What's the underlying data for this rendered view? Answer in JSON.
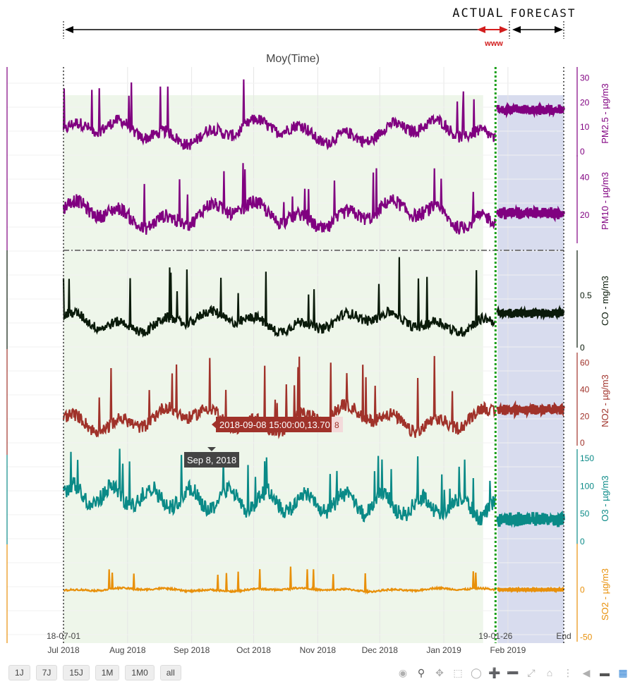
{
  "chart_data": {
    "type": "line",
    "title": "Moy(Time)",
    "x_start": "2018-07-01",
    "x_end": "2019-02-28",
    "x_ticks": [
      "Jul 2018",
      "Aug 2018",
      "Sep 2018",
      "Oct 2018",
      "Nov 2018",
      "Dec 2018",
      "Jan 2019",
      "Feb 2019"
    ],
    "x_marker_labels": {
      "start": "18-07-01",
      "forecast_start": "19-01-26",
      "end": "End"
    },
    "train_region": {
      "start": "2018-07-01",
      "end": "2019-01-20"
    },
    "forecast_region": {
      "start": "2019-01-27",
      "end": "2019-02-28"
    },
    "annotations": {
      "actual": "ACTUAL",
      "forecast": "FORECAST",
      "window": "www"
    },
    "series": [
      {
        "name": "PM2.5",
        "ylabel": "PM2.5 - µg/m3",
        "color": "#800080",
        "ticks": [
          "0",
          "10",
          "20",
          "30"
        ],
        "tick_values": [
          0,
          10,
          20,
          30
        ],
        "range": [
          -2,
          33
        ],
        "base": 8,
        "amp": 4,
        "spike": 20,
        "forecast_level": 17
      },
      {
        "name": "PM10",
        "ylabel": "PM10 - µg/m3",
        "color": "#800080",
        "ticks": [
          "20",
          "40"
        ],
        "tick_values": [
          20,
          40
        ],
        "range": [
          5,
          50
        ],
        "base": 20,
        "amp": 6,
        "spike": 25,
        "forecast_level": 21
      },
      {
        "name": "CO",
        "ylabel": "CO - mg/m3",
        "color": "#0a1a0a",
        "ticks": [
          "0",
          "0.5"
        ],
        "tick_values": [
          0,
          0.5
        ],
        "range": [
          0,
          0.9
        ],
        "base": 0.25,
        "amp": 0.08,
        "spike": 0.55,
        "forecast_level": 0.33
      },
      {
        "name": "NO2",
        "ylabel": "NO2 - µg/m3",
        "color": "#a0322a",
        "ticks": [
          "0",
          "20",
          "40",
          "60"
        ],
        "tick_values": [
          0,
          20,
          40,
          60
        ],
        "range": [
          -2,
          65
        ],
        "base": 18,
        "amp": 8,
        "spike": 45,
        "forecast_level": 25
      },
      {
        "name": "O3",
        "ylabel": "O3 - µg/m3",
        "color": "#0a8a87",
        "ticks": [
          "0",
          "50",
          "100",
          "150"
        ],
        "tick_values": [
          0,
          50,
          100,
          150
        ],
        "range": [
          -5,
          160
        ],
        "base": 60,
        "amp": 25,
        "spike": 80,
        "forecast_level": 40
      },
      {
        "name": "SO2",
        "ylabel": "SO2 - µg/m3",
        "color": "#e8900a",
        "ticks": [
          "-50",
          "0"
        ],
        "tick_values": [
          -50,
          0
        ],
        "range": [
          -55,
          45
        ],
        "base": 0,
        "amp": 1.5,
        "spike": 25,
        "forecast_level": 0
      }
    ],
    "hover": {
      "point_label": "2018-09-08 15:00:00,13.70",
      "extra": "8",
      "x_label": "Sep 8, 2018"
    }
  },
  "range_buttons": [
    "1J",
    "7J",
    "15J",
    "1M",
    "1M0",
    "all"
  ],
  "modebar_icons": [
    "camera-icon",
    "zoom-icon",
    "pan-icon",
    "select-box-icon",
    "lasso-icon",
    "zoom-in-icon",
    "zoom-out-icon",
    "autoscale-icon",
    "home-icon",
    "spike-lines-icon",
    "hover-closest-icon",
    "hover-compare-icon",
    "plotly-logo-icon"
  ]
}
